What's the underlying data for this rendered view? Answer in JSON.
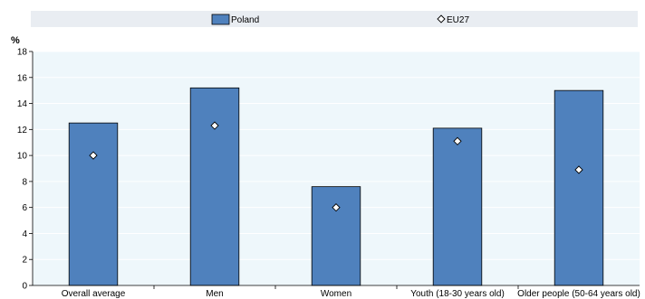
{
  "chart_data": {
    "type": "bar",
    "ylabel": "%",
    "ylim": [
      0,
      18
    ],
    "yticks": [
      0,
      2,
      4,
      6,
      8,
      10,
      12,
      14,
      16,
      18
    ],
    "categories": [
      "Overall average",
      "Men",
      "Women",
      "Youth (18-30 years old)",
      "Older people (50-64 years old)"
    ],
    "series": [
      {
        "name": "Poland",
        "kind": "bar",
        "color": "#4f81bd",
        "values": [
          12.5,
          15.2,
          7.6,
          12.1,
          15.0
        ]
      },
      {
        "name": "EU27",
        "kind": "marker",
        "color": "#ffffff",
        "values": [
          10.0,
          12.3,
          6.0,
          11.1,
          8.9
        ]
      }
    ],
    "grid": true,
    "legend_position": "top"
  }
}
